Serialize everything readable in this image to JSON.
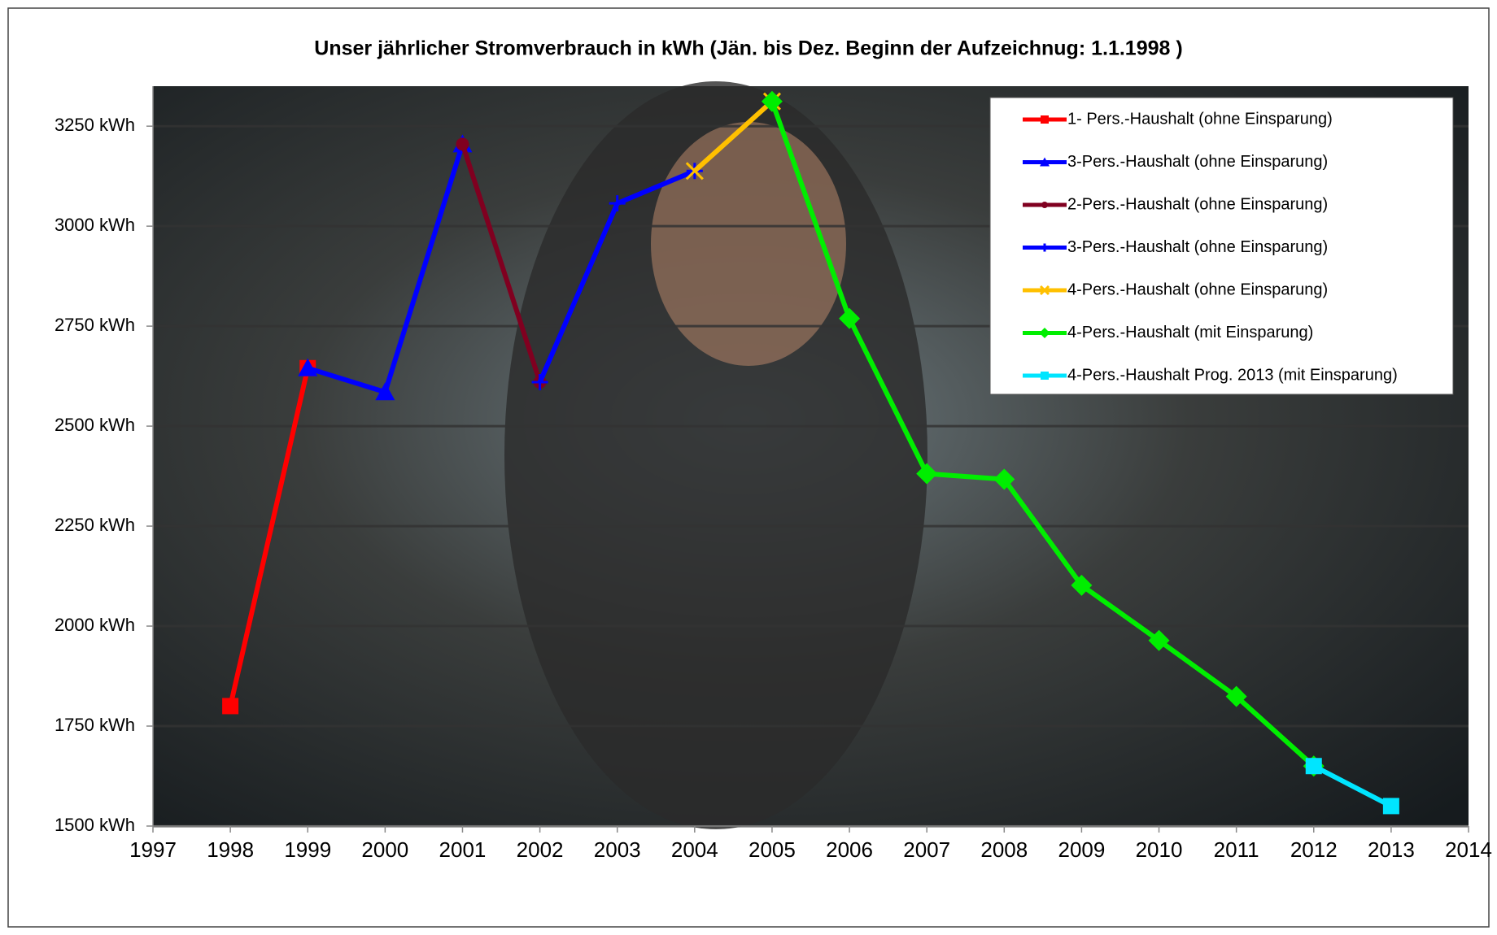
{
  "chart_data": {
    "type": "line",
    "title": "Unser jährlicher Stromverbrauch in kWh (Jän. bis Dez.  Beginn der Aufzeichnug: 1.1.1998 )",
    "xlim": [
      1997,
      2014
    ],
    "xticks": [
      1997,
      1998,
      1999,
      2000,
      2001,
      2002,
      2003,
      2004,
      2005,
      2006,
      2007,
      2008,
      2009,
      2010,
      2011,
      2012,
      2013,
      2014
    ],
    "ylim": [
      1500,
      3350
    ],
    "yticks": [
      {
        "value": 1500,
        "label": "1500 kWh"
      },
      {
        "value": 1750,
        "label": "1750 kWh"
      },
      {
        "value": 2000,
        "label": "2000 kWh"
      },
      {
        "value": 2250,
        "label": "2250 kWh"
      },
      {
        "value": 2500,
        "label": "2500 kWh"
      },
      {
        "value": 2750,
        "label": "2750 kWh"
      },
      {
        "value": 3000,
        "label": "3000 kWh"
      },
      {
        "value": 3250,
        "label": "3250 kWh"
      }
    ],
    "grid": true,
    "legend": "top-right",
    "series": [
      {
        "name": "1- Pers.-Haushalt (ohne Einsparung)",
        "color": "#ff0000",
        "marker": "square",
        "x": [
          1998,
          1999
        ],
        "values": [
          1800,
          2645
        ]
      },
      {
        "name": "3-Pers.-Haushalt (ohne Einsparung)",
        "color": "#0000ff",
        "marker": "triangle",
        "x": [
          1999,
          2000,
          2001
        ],
        "values": [
          2645,
          2585,
          3205
        ]
      },
      {
        "name": "2-Pers.-Haushalt (ohne Einsparung)",
        "color": "#800020",
        "marker": "circle",
        "x": [
          2001,
          2002
        ],
        "values": [
          3205,
          2610
        ]
      },
      {
        "name": "3-Pers.-Haushalt (ohne Einsparung)",
        "color": "#0000ff",
        "marker": "plus",
        "x": [
          2002,
          2003,
          2004
        ],
        "values": [
          2610,
          3057,
          3138
        ]
      },
      {
        "name": "4-Pers.-Haushalt (ohne Einsparung)",
        "color": "#ffc000",
        "marker": "cross",
        "x": [
          2004,
          2005
        ],
        "values": [
          3138,
          3312
        ]
      },
      {
        "name": "4-Pers.-Haushalt (mit Einsparung)",
        "color": "#00ee00",
        "marker": "diamond",
        "x": [
          2005,
          2006,
          2007,
          2008,
          2009,
          2010,
          2011,
          2012
        ],
        "values": [
          3312,
          2769,
          2381,
          2367,
          2102,
          1964,
          1824,
          1650
        ]
      },
      {
        "name": "4-Pers.-Haushalt Prog. 2013 (mit Einsparung)",
        "color": "#00e5ff",
        "marker": "square",
        "x": [
          2012,
          2013
        ],
        "values": [
          1650,
          1550
        ]
      }
    ]
  }
}
